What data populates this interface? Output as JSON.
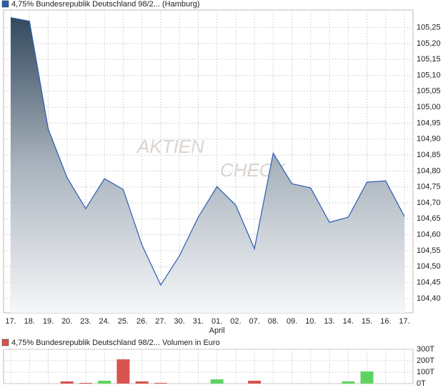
{
  "chart_data": [
    {
      "type": "area",
      "title": "4,75% Bundesrepublik Deutschland 98/2... (Hamburg)",
      "color": "#2a5db0",
      "watermark": [
        "AKTIEN",
        "CHECK"
      ],
      "categories": [
        "17.",
        "18.",
        "19.",
        "20.",
        "23.",
        "24.",
        "25.",
        "26.",
        "27.",
        "30.",
        "31.",
        "01.",
        "02.",
        "07.",
        "08.",
        "09.",
        "10.",
        "13.",
        "14.",
        "15.",
        "16.",
        "17."
      ],
      "x_annotation": {
        "index": 11,
        "label": "April"
      },
      "values": [
        105.281,
        105.27,
        104.932,
        104.78,
        104.682,
        104.776,
        104.742,
        104.568,
        104.442,
        104.534,
        104.655,
        104.751,
        104.693,
        104.556,
        104.856,
        104.76,
        104.747,
        104.639,
        104.655,
        104.765,
        104.769,
        104.657
      ],
      "ylim": [
        104.355,
        105.305
      ],
      "yticks": [
        {
          "value": 104.4,
          "label": "104,40"
        },
        {
          "value": 104.45,
          "label": "104,45"
        },
        {
          "value": 104.5,
          "label": "104,50"
        },
        {
          "value": 104.55,
          "label": "104,55"
        },
        {
          "value": 104.6,
          "label": "104,60"
        },
        {
          "value": 104.65,
          "label": "104,65"
        },
        {
          "value": 104.7,
          "label": "104,70"
        },
        {
          "value": 104.75,
          "label": "104,75"
        },
        {
          "value": 104.8,
          "label": "104,80"
        },
        {
          "value": 104.85,
          "label": "104,85"
        },
        {
          "value": 104.9,
          "label": "104,90"
        },
        {
          "value": 104.95,
          "label": "104,95"
        },
        {
          "value": 105.0,
          "label": "105,00"
        },
        {
          "value": 105.05,
          "label": "105,05"
        },
        {
          "value": 105.1,
          "label": "105,10"
        },
        {
          "value": 105.15,
          "label": "105,15"
        },
        {
          "value": 105.2,
          "label": "105,20"
        },
        {
          "value": 105.25,
          "label": "105,25"
        }
      ],
      "grid": true
    },
    {
      "type": "bar",
      "title": "4,75% Bundesrepublik Deutschland 98/2... Volumen in Euro",
      "color": "#d9534f",
      "values": [
        0,
        0,
        0,
        19,
        6,
        25,
        212,
        19,
        6,
        0,
        0,
        37,
        0,
        25,
        0,
        0,
        0,
        0,
        19,
        106,
        0,
        0
      ],
      "bar_colors": [
        "#d9534f",
        "#d9534f",
        "#d9534f",
        "#d9534f",
        "#d9534f",
        "#5fd35f",
        "#d9534f",
        "#d9534f",
        "#d9534f",
        "#d9534f",
        "#d9534f",
        "#5fd35f",
        "#d9534f",
        "#d9534f",
        "#5fd35f",
        "#d9534f",
        "#d9534f",
        "#d9534f",
        "#5fd35f",
        "#5fd35f",
        "#d9534f",
        "#d9534f"
      ],
      "ylim": [
        0,
        300
      ],
      "yticks": [
        {
          "value": 0,
          "label": "0T"
        },
        {
          "value": 100,
          "label": "100T"
        },
        {
          "value": 200,
          "label": "200T"
        },
        {
          "value": 300,
          "label": "300T"
        }
      ],
      "grid": true
    }
  ]
}
